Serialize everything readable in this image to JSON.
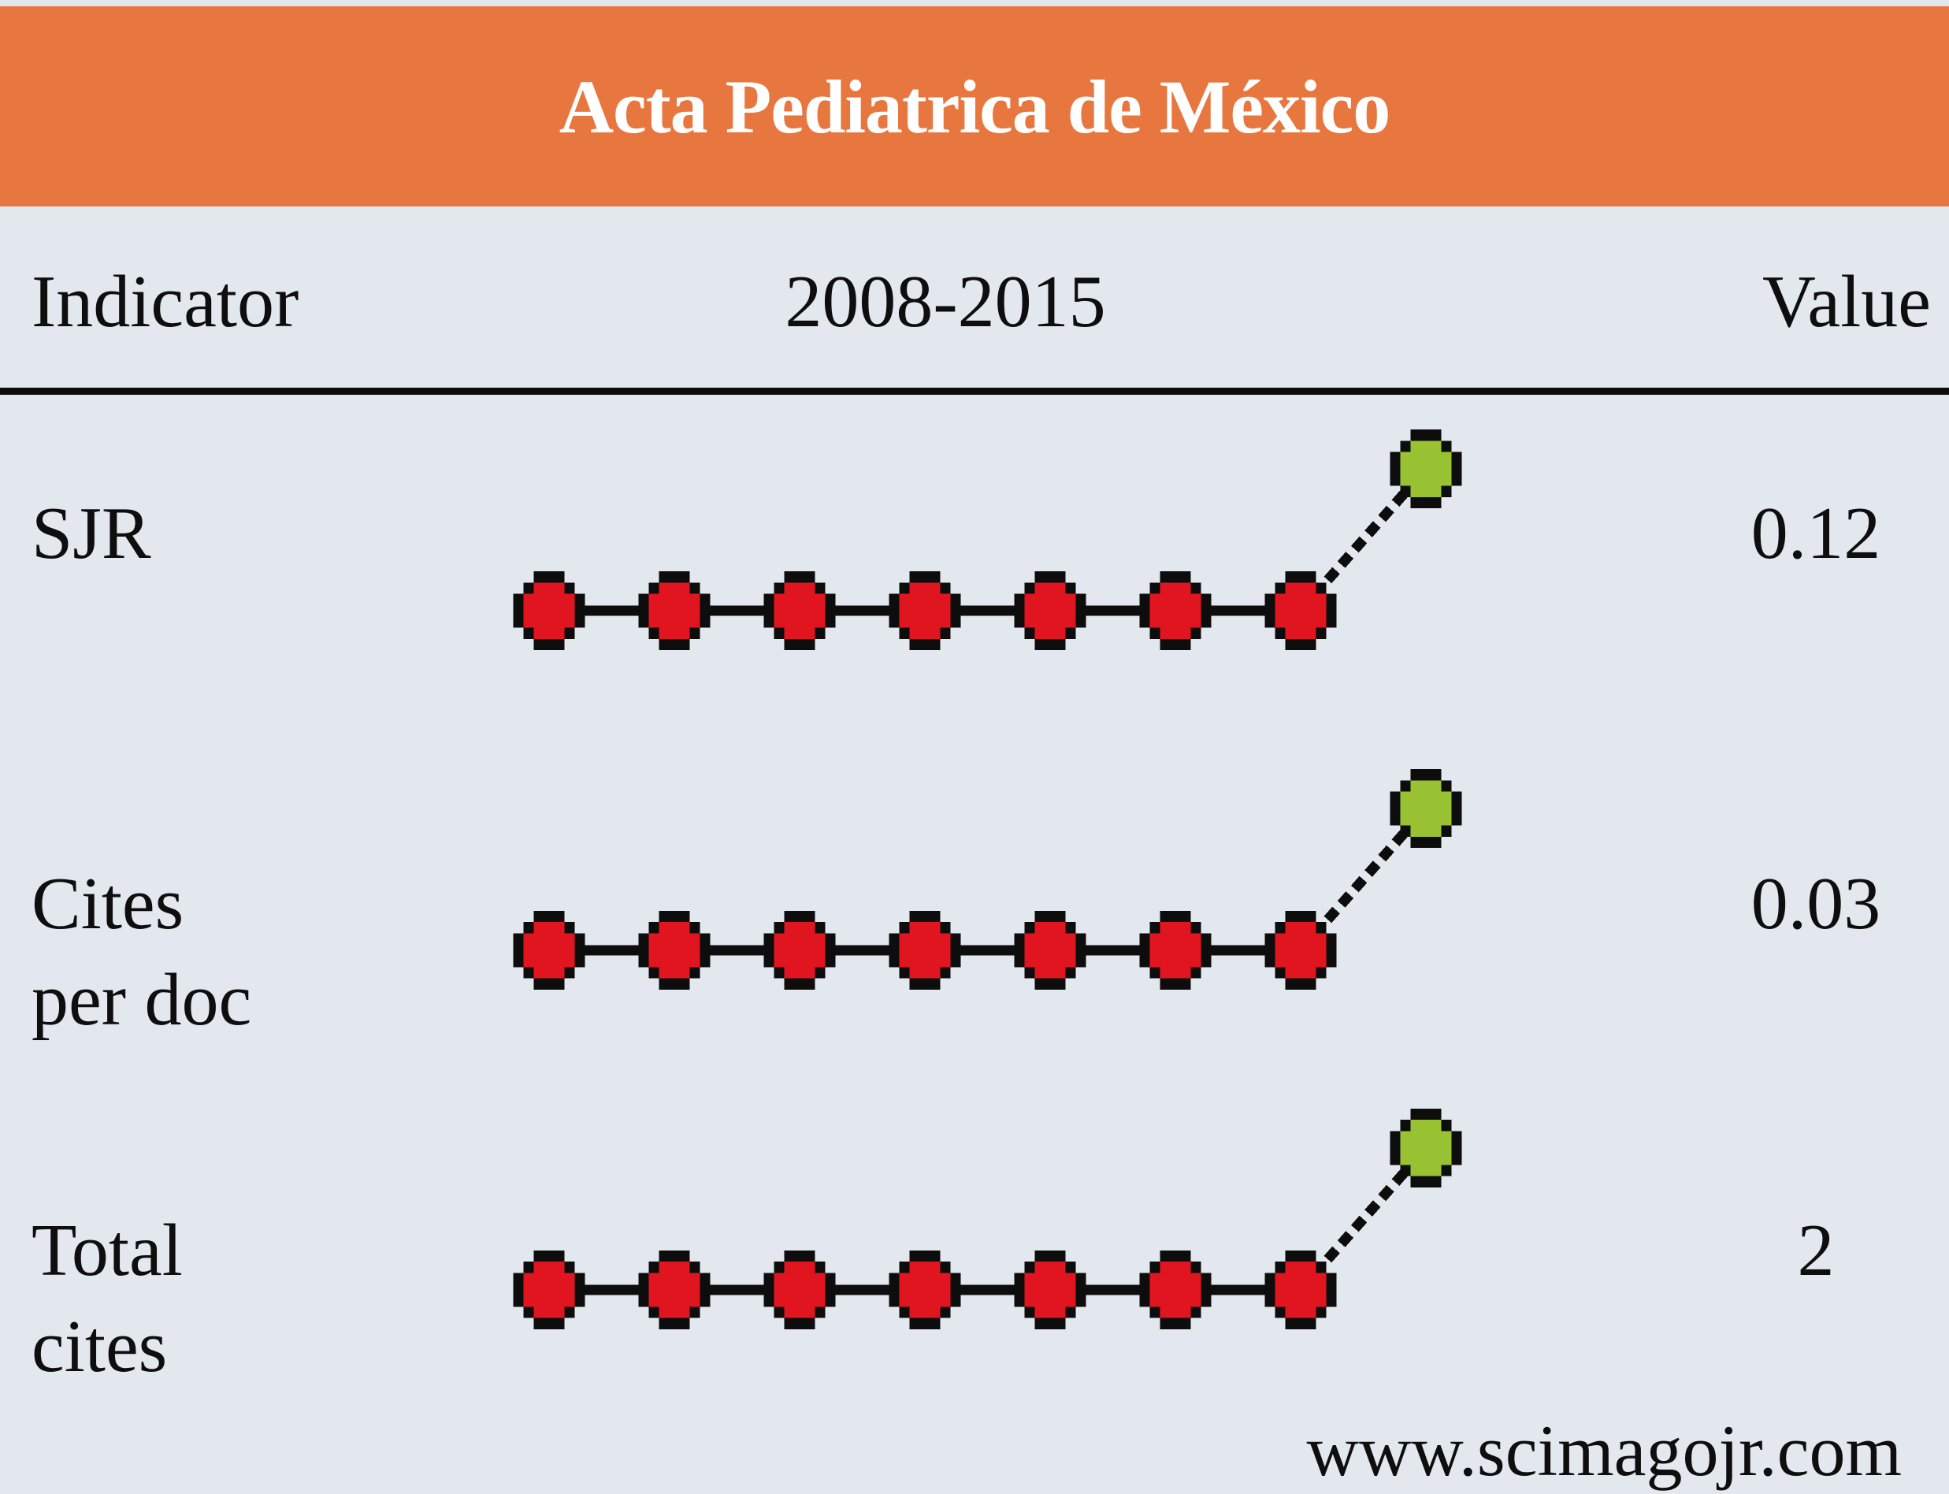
{
  "header": {
    "title": "Acta Pediatrica de México"
  },
  "table": {
    "columns": [
      "Indicator",
      "2008-2015",
      "Value"
    ]
  },
  "rows": [
    {
      "label_lines": [
        "SJR"
      ],
      "value": "0.12"
    },
    {
      "label_lines": [
        "Cites",
        "per doc"
      ],
      "value": "0.03"
    },
    {
      "label_lines": [
        "Total",
        "cites"
      ],
      "value": "2"
    }
  ],
  "footer": {
    "website": "www.scimagojr.com"
  },
  "colors": {
    "banner_bg": "#e8773f",
    "card_bg": "#e3e8ee",
    "past_point": "#e11520",
    "latest_point": "#99c233",
    "line": "#0d0d0d",
    "text": "#0e0e0e",
    "title_text": "#ffffff"
  },
  "chart_data": [
    {
      "type": "line",
      "name": "SJR",
      "x": [
        2008,
        2009,
        2010,
        2011,
        2012,
        2013,
        2014,
        2015
      ],
      "values": [
        0,
        0,
        0,
        0,
        0,
        0,
        0,
        0.12
      ],
      "latest_value": 0.12,
      "point_color_past": "#e11520",
      "point_color_latest": "#99c233",
      "legend_position": "none",
      "grid": false,
      "note": "flat at 0 for 2008-2014, rises to 0.12 in 2015 (green point)"
    },
    {
      "type": "line",
      "name": "Cites per doc",
      "x": [
        2008,
        2009,
        2010,
        2011,
        2012,
        2013,
        2014,
        2015
      ],
      "values": [
        0,
        0,
        0,
        0,
        0,
        0,
        0,
        0.03
      ],
      "latest_value": 0.03,
      "point_color_past": "#e11520",
      "point_color_latest": "#99c233",
      "legend_position": "none",
      "grid": false,
      "note": "flat at 0 for 2008-2014, rises to 0.03 in 2015 (green point)"
    },
    {
      "type": "line",
      "name": "Total cites",
      "x": [
        2008,
        2009,
        2010,
        2011,
        2012,
        2013,
        2014,
        2015
      ],
      "values": [
        0,
        0,
        0,
        0,
        0,
        0,
        0,
        2
      ],
      "latest_value": 2,
      "point_color_past": "#e11520",
      "point_color_latest": "#99c233",
      "legend_position": "none",
      "grid": false,
      "note": "flat at 0 for 2008-2014, rises to 2 in 2015 (green point)"
    }
  ]
}
